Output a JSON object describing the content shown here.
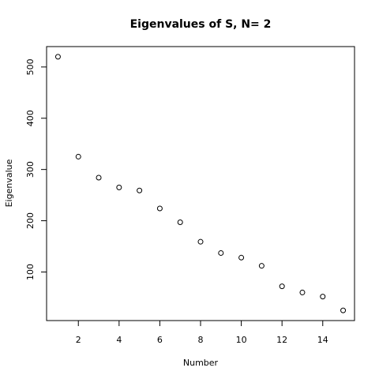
{
  "chart_data": {
    "type": "scatter",
    "title": "Eigenvalues of S, N= 2",
    "x_label": "Number",
    "y_label": "Eigenvalue",
    "x": [
      1,
      2,
      3,
      4,
      5,
      6,
      7,
      8,
      9,
      10,
      11,
      12,
      13,
      14,
      15
    ],
    "values": [
      520,
      325,
      284,
      265,
      259,
      224,
      197,
      159,
      137,
      128,
      112,
      72,
      60,
      52,
      25
    ],
    "color": "#000000",
    "xlim": [
      0.44,
      15.56
    ],
    "xticks": [
      2,
      4,
      6,
      8,
      10,
      12,
      14
    ],
    "ylim": [
      5.2,
      539.8
    ],
    "yticks": [
      100,
      200,
      300,
      400,
      500
    ]
  }
}
